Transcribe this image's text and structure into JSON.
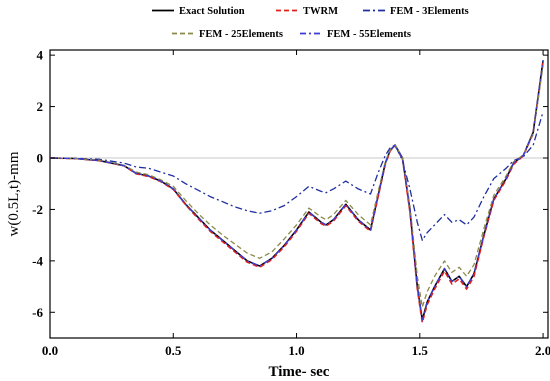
{
  "chart_data": {
    "type": "line",
    "xlabel": "Time- sec",
    "ylabel": "w(0.5L,t)-mm",
    "xlim": [
      0,
      2.02
    ],
    "ylim": [
      -7,
      4.2
    ],
    "x_ticks": [
      "0.0",
      "0.5",
      "1.0",
      "1.5",
      "2.0"
    ],
    "y_ticks": [
      "4",
      "2",
      "0",
      "-2",
      "-4",
      "-6"
    ],
    "grid": false,
    "zero_line": true,
    "legend_position": "top-center",
    "series": [
      {
        "name": "Exact Solution",
        "color": "#000000",
        "dash": "solid",
        "x": [
          0.0,
          0.1,
          0.2,
          0.3,
          0.35,
          0.4,
          0.45,
          0.5,
          0.55,
          0.6,
          0.65,
          0.7,
          0.75,
          0.8,
          0.85,
          0.9,
          0.95,
          1.0,
          1.05,
          1.1,
          1.12,
          1.15,
          1.2,
          1.25,
          1.3,
          1.33,
          1.36,
          1.38,
          1.4,
          1.43,
          1.46,
          1.49,
          1.51,
          1.53,
          1.56,
          1.6,
          1.63,
          1.66,
          1.69,
          1.72,
          1.76,
          1.8,
          1.85,
          1.88,
          1.92,
          1.96,
          2.0
        ],
        "y": [
          0.0,
          -0.02,
          -0.1,
          -0.3,
          -0.6,
          -0.7,
          -0.9,
          -1.2,
          -1.8,
          -2.3,
          -2.8,
          -3.2,
          -3.6,
          -4.0,
          -4.2,
          -3.9,
          -3.4,
          -2.8,
          -2.1,
          -2.5,
          -2.6,
          -2.4,
          -1.8,
          -2.4,
          -2.8,
          -1.5,
          -0.2,
          0.3,
          0.5,
          0.0,
          -2.0,
          -5.0,
          -6.3,
          -5.6,
          -5.0,
          -4.3,
          -4.8,
          -4.6,
          -5.0,
          -4.5,
          -3.0,
          -1.6,
          -0.8,
          -0.2,
          0.1,
          1.0,
          3.8
        ]
      },
      {
        "name": "TWRM",
        "color": "#e0201b",
        "dash": "5,3",
        "x": [
          0.0,
          0.1,
          0.2,
          0.3,
          0.35,
          0.4,
          0.45,
          0.5,
          0.55,
          0.6,
          0.65,
          0.7,
          0.75,
          0.8,
          0.85,
          0.9,
          0.95,
          1.0,
          1.05,
          1.1,
          1.12,
          1.15,
          1.2,
          1.25,
          1.3,
          1.33,
          1.36,
          1.38,
          1.4,
          1.43,
          1.46,
          1.49,
          1.51,
          1.53,
          1.56,
          1.6,
          1.63,
          1.66,
          1.69,
          1.72,
          1.76,
          1.8,
          1.85,
          1.88,
          1.92,
          1.96,
          2.0
        ],
        "y": [
          0.0,
          -0.02,
          -0.1,
          -0.3,
          -0.62,
          -0.72,
          -0.92,
          -1.22,
          -1.82,
          -2.35,
          -2.85,
          -3.25,
          -3.65,
          -4.05,
          -4.25,
          -3.95,
          -3.45,
          -2.85,
          -2.15,
          -2.55,
          -2.65,
          -2.45,
          -1.85,
          -2.45,
          -2.85,
          -1.55,
          -0.25,
          0.28,
          0.48,
          -0.05,
          -2.1,
          -5.1,
          -6.4,
          -5.7,
          -5.1,
          -4.4,
          -4.9,
          -4.7,
          -5.1,
          -4.6,
          -3.05,
          -1.65,
          -0.85,
          -0.25,
          0.08,
          0.95,
          3.75
        ]
      },
      {
        "name": "FEM - 3Elements",
        "color": "#1f2f9e",
        "dash": "7,3,2,3",
        "x": [
          0.0,
          0.1,
          0.2,
          0.3,
          0.35,
          0.4,
          0.45,
          0.5,
          0.55,
          0.6,
          0.65,
          0.7,
          0.75,
          0.8,
          0.85,
          0.9,
          0.95,
          1.0,
          1.05,
          1.1,
          1.12,
          1.15,
          1.2,
          1.25,
          1.3,
          1.33,
          1.36,
          1.38,
          1.4,
          1.43,
          1.46,
          1.49,
          1.51,
          1.53,
          1.56,
          1.6,
          1.63,
          1.66,
          1.69,
          1.72,
          1.76,
          1.8,
          1.85,
          1.88,
          1.92,
          1.96,
          2.0
        ],
        "y": [
          0.0,
          -0.01,
          -0.05,
          -0.2,
          -0.35,
          -0.4,
          -0.55,
          -0.7,
          -1.0,
          -1.25,
          -1.5,
          -1.7,
          -1.9,
          -2.05,
          -2.15,
          -2.05,
          -1.85,
          -1.5,
          -1.1,
          -1.3,
          -1.35,
          -1.2,
          -0.9,
          -1.2,
          -1.4,
          -0.6,
          0.1,
          0.4,
          0.5,
          -0.1,
          -1.2,
          -2.5,
          -3.2,
          -2.9,
          -2.6,
          -2.2,
          -2.5,
          -2.4,
          -2.6,
          -2.3,
          -1.5,
          -0.8,
          -0.4,
          -0.1,
          0.05,
          0.5,
          1.8
        ]
      },
      {
        "name": "FEM - 25Elements",
        "color": "#8a8a4a",
        "dash": "5,3",
        "x": [
          0.0,
          0.1,
          0.2,
          0.3,
          0.35,
          0.4,
          0.45,
          0.5,
          0.55,
          0.6,
          0.65,
          0.7,
          0.75,
          0.8,
          0.85,
          0.9,
          0.95,
          1.0,
          1.05,
          1.1,
          1.12,
          1.15,
          1.2,
          1.25,
          1.3,
          1.33,
          1.36,
          1.38,
          1.4,
          1.43,
          1.46,
          1.49,
          1.51,
          1.53,
          1.56,
          1.6,
          1.63,
          1.66,
          1.69,
          1.72,
          1.76,
          1.8,
          1.85,
          1.88,
          1.92,
          1.96,
          2.0
        ],
        "y": [
          0.0,
          -0.02,
          -0.08,
          -0.28,
          -0.55,
          -0.65,
          -0.85,
          -1.1,
          -1.65,
          -2.15,
          -2.6,
          -3.0,
          -3.35,
          -3.7,
          -3.9,
          -3.65,
          -3.15,
          -2.6,
          -1.95,
          -2.3,
          -2.4,
          -2.2,
          -1.65,
          -2.2,
          -2.6,
          -1.35,
          -0.15,
          0.32,
          0.52,
          0.02,
          -1.85,
          -4.6,
          -5.8,
          -5.2,
          -4.6,
          -4.0,
          -4.45,
          -4.25,
          -4.6,
          -4.15,
          -2.75,
          -1.45,
          -0.7,
          -0.15,
          0.12,
          0.95,
          3.6
        ]
      },
      {
        "name": "FEM - 55Elements",
        "color": "#3b3bd9",
        "dash": "6,3,2,3",
        "x": [
          0.0,
          0.1,
          0.2,
          0.3,
          0.35,
          0.4,
          0.45,
          0.5,
          0.55,
          0.6,
          0.65,
          0.7,
          0.75,
          0.8,
          0.85,
          0.9,
          0.95,
          1.0,
          1.05,
          1.1,
          1.12,
          1.15,
          1.2,
          1.25,
          1.3,
          1.33,
          1.36,
          1.38,
          1.4,
          1.43,
          1.46,
          1.49,
          1.51,
          1.53,
          1.56,
          1.6,
          1.63,
          1.66,
          1.69,
          1.72,
          1.76,
          1.8,
          1.85,
          1.88,
          1.92,
          1.96,
          2.0
        ],
        "y": [
          0.0,
          -0.02,
          -0.1,
          -0.3,
          -0.6,
          -0.7,
          -0.9,
          -1.2,
          -1.8,
          -2.3,
          -2.8,
          -3.2,
          -3.6,
          -4.0,
          -4.2,
          -3.9,
          -3.4,
          -2.8,
          -2.1,
          -2.5,
          -2.6,
          -2.4,
          -1.8,
          -2.4,
          -2.8,
          -1.5,
          -0.2,
          0.3,
          0.5,
          0.0,
          -2.0,
          -5.0,
          -6.3,
          -5.6,
          -5.0,
          -4.3,
          -4.8,
          -4.6,
          -5.0,
          -4.5,
          -3.0,
          -1.6,
          -0.8,
          -0.2,
          0.1,
          1.0,
          3.8
        ]
      }
    ]
  }
}
